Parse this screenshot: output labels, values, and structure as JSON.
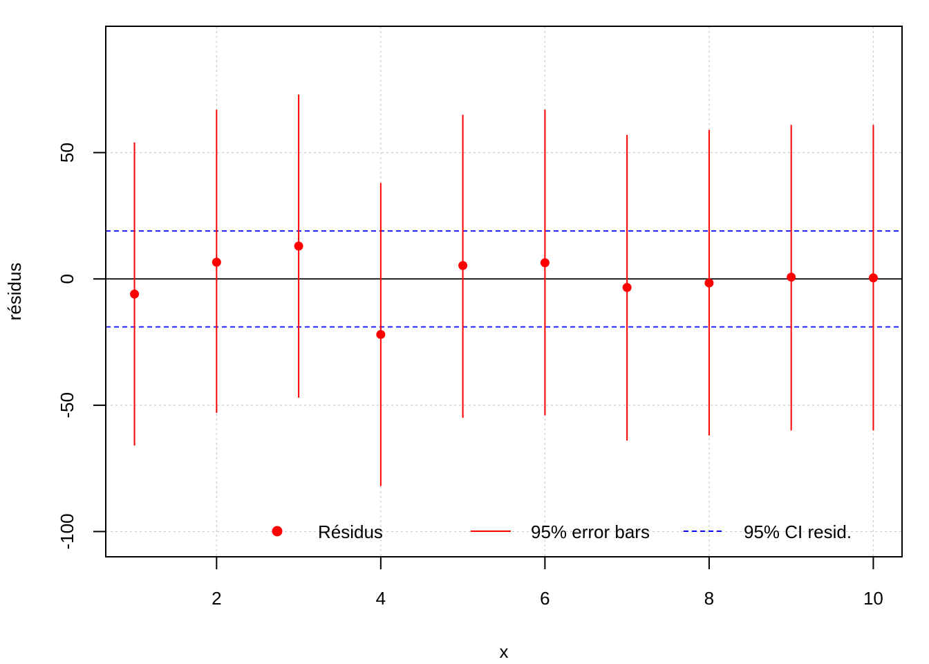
{
  "chart_data": {
    "type": "scatter",
    "title": "",
    "xlabel": "x",
    "ylabel": "résidus",
    "xlim": [
      0.65,
      10.35
    ],
    "ylim": [
      -110,
      100
    ],
    "x_ticks": [
      2,
      4,
      6,
      8,
      10
    ],
    "y_ticks": [
      -100,
      -50,
      0,
      50
    ],
    "x_tick_labels": [
      "2",
      "4",
      "6",
      "8",
      "10"
    ],
    "y_tick_labels": [
      "-100",
      "-50",
      "0",
      "50"
    ],
    "grid": true,
    "legend_placement": "bottom-right",
    "zero_line": 0,
    "ci_band": [
      -19,
      19
    ],
    "points": [
      {
        "x": 1,
        "y": -6,
        "lower": -66,
        "upper": 54
      },
      {
        "x": 2,
        "y": 6.6,
        "lower": -53,
        "upper": 67
      },
      {
        "x": 3,
        "y": 13,
        "lower": -47,
        "upper": 73
      },
      {
        "x": 4,
        "y": -22,
        "lower": -82,
        "upper": 38
      },
      {
        "x": 5,
        "y": 5.3,
        "lower": -55,
        "upper": 65
      },
      {
        "x": 6,
        "y": 6.4,
        "lower": -54,
        "upper": 67
      },
      {
        "x": 7,
        "y": -3.4,
        "lower": -64,
        "upper": 57
      },
      {
        "x": 8,
        "y": -1.6,
        "lower": -62,
        "upper": 59
      },
      {
        "x": 9,
        "y": 0.7,
        "lower": -60,
        "upper": 61
      },
      {
        "x": 10,
        "y": 0.4,
        "lower": -60,
        "upper": 61
      }
    ],
    "legend": [
      {
        "label": "Résidus",
        "kind": "point",
        "color": "#ff0000"
      },
      {
        "label": "95% error bars",
        "kind": "line",
        "color": "#ff0000"
      },
      {
        "label": "95% CI resid.",
        "kind": "dashed",
        "color": "#0000ff"
      }
    ],
    "colors": {
      "points": "#ff0000",
      "error_bars": "#ff0000",
      "ci_lines": "#0000ff",
      "zero_line": "#000000",
      "grid": "#cccccc"
    }
  }
}
